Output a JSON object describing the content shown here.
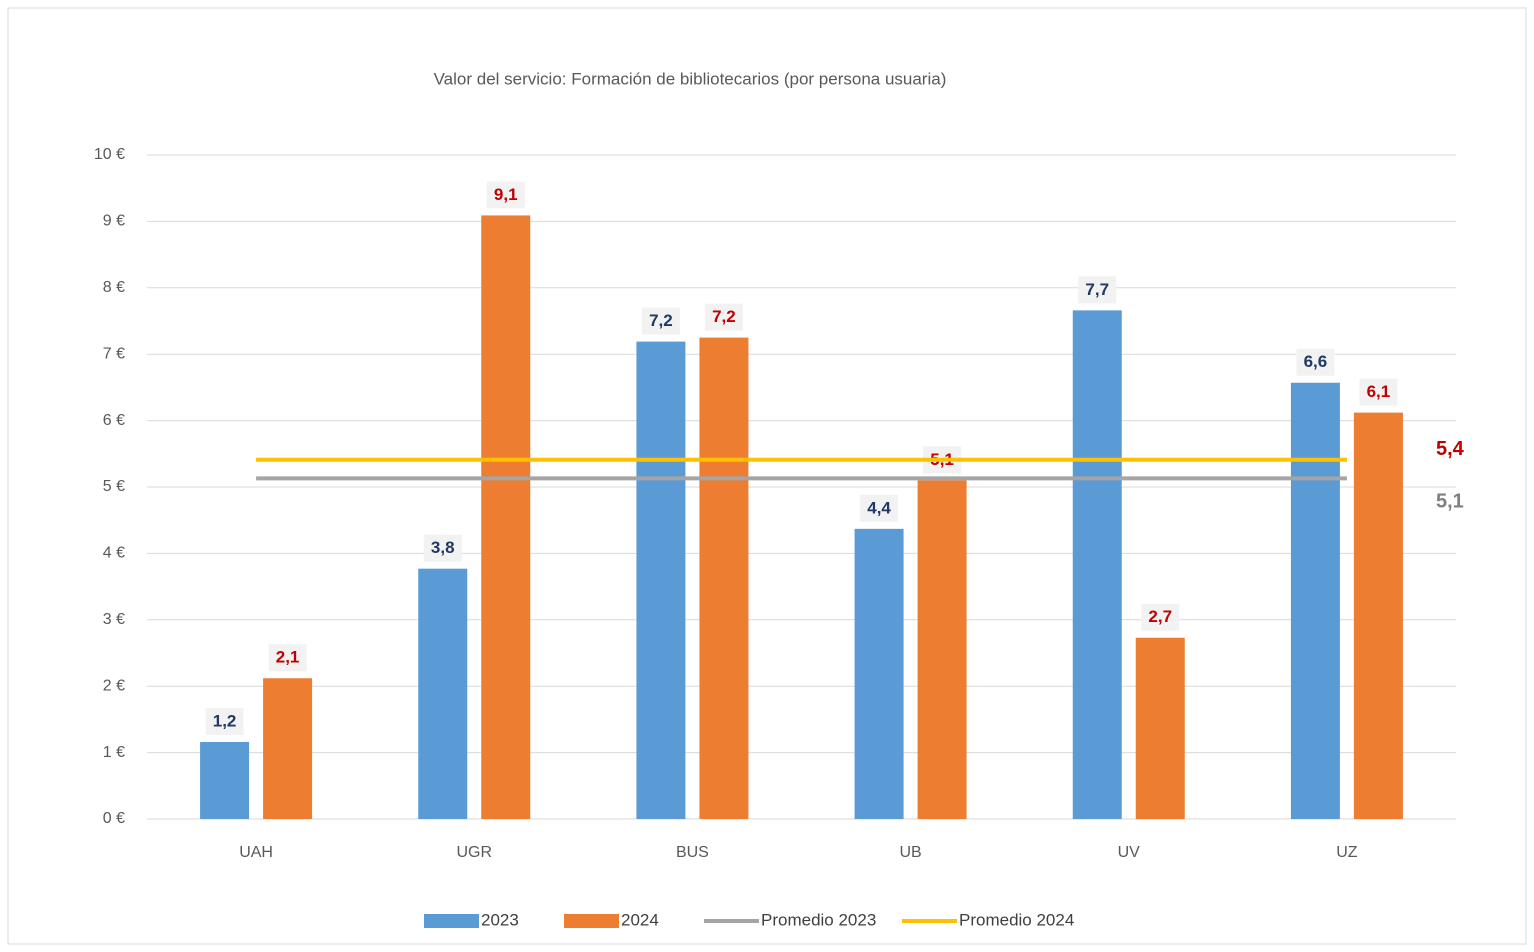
{
  "chart_data": {
    "type": "bar",
    "title": "Valor del servicio: Formación de bibliotecarios (por persona usuaria)",
    "categories": [
      "UAH",
      "UGR",
      "BUS",
      "UB",
      "UV",
      "UZ"
    ],
    "series": [
      {
        "name": "2023",
        "type": "bar",
        "color": "#5b9bd5",
        "label_color": "#1f3864",
        "values": [
          1.16,
          3.77,
          7.19,
          4.37,
          7.66,
          6.57
        ],
        "value_labels": [
          "1,2",
          "3,8",
          "7,2",
          "4,4",
          "7,7",
          "6,6"
        ]
      },
      {
        "name": "2024",
        "type": "bar",
        "color": "#ed7d31",
        "label_color": "#c00000",
        "values": [
          2.12,
          9.09,
          7.25,
          5.1,
          2.73,
          6.12
        ],
        "value_labels": [
          "2,1",
          "9,1",
          "7,2",
          "5,1",
          "2,7",
          "6,1"
        ]
      },
      {
        "name": "Promedio 2023",
        "type": "line",
        "color": "#a5a5a5",
        "label_color": "#7f7f7f",
        "values": [
          5.13,
          5.13,
          5.13,
          5.13,
          5.13,
          5.13
        ],
        "value_labels": [
          null,
          null,
          null,
          null,
          null,
          "5,1"
        ]
      },
      {
        "name": "Promedio 2024",
        "type": "line",
        "color": "#ffc000",
        "label_color": "#c00000",
        "values": [
          5.41,
          5.41,
          5.41,
          5.41,
          5.41,
          5.41
        ],
        "value_labels": [
          null,
          null,
          null,
          null,
          null,
          "5,4"
        ]
      }
    ],
    "ylim": [
      0,
      10
    ],
    "yticks": [
      {
        "value": 0,
        "label": "0 €"
      },
      {
        "value": 1,
        "label": "1 €"
      },
      {
        "value": 2,
        "label": "2 €"
      },
      {
        "value": 3,
        "label": "3 €"
      },
      {
        "value": 4,
        "label": "4 €"
      },
      {
        "value": 5,
        "label": "5 €"
      },
      {
        "value": 6,
        "label": "6 €"
      },
      {
        "value": 7,
        "label": "7 €"
      },
      {
        "value": 8,
        "label": "8 €"
      },
      {
        "value": 9,
        "label": "9 €"
      },
      {
        "value": 10,
        "label": "10 €"
      }
    ],
    "grid": true,
    "legend": "bottom"
  }
}
